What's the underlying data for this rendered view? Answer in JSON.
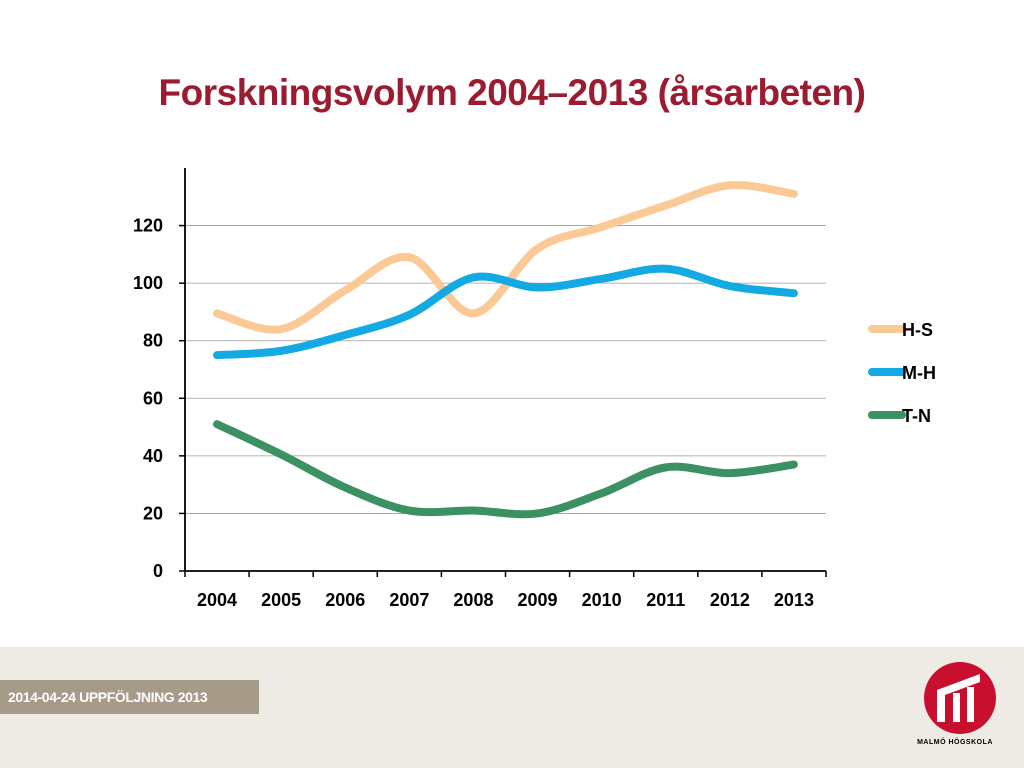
{
  "slide": {
    "title": "Forskningsvolym 2004–2013 (årsarbeten)",
    "footer_tag": "2014-04-24  UPPFÖLJNING 2013",
    "logo_text": "MALMÖ HÖGSKOLA"
  },
  "colors": {
    "title": "#9b1b30",
    "logo": "#c8102e",
    "footer_band": "#eeebe5",
    "footer_tag": "#a69b89",
    "grid": "#9a9a9a"
  },
  "chart_data": {
    "type": "line",
    "title": "",
    "xlabel": "",
    "ylabel": "",
    "ylim": [
      0,
      140
    ],
    "yticks": [
      0,
      20,
      40,
      60,
      80,
      100,
      120
    ],
    "grid": true,
    "legend": "right",
    "smooth": true,
    "categories": [
      "2004",
      "2005",
      "2006",
      "2007",
      "2008",
      "2009",
      "2010",
      "2011",
      "2012",
      "2013"
    ],
    "series": [
      {
        "name": "H-S",
        "color": "#fbc995",
        "values": [
          89.5,
          84,
          97.5,
          109,
          89.5,
          112,
          119.5,
          127,
          134,
          131
        ]
      },
      {
        "name": "M-H",
        "color": "#13aae3",
        "values": [
          75,
          76.5,
          82,
          89,
          102,
          98.5,
          101.5,
          105,
          99,
          96.5
        ]
      },
      {
        "name": "T-N",
        "color": "#3b9162",
        "values": [
          51,
          40.5,
          29,
          21,
          21,
          20,
          27,
          36,
          34,
          37
        ]
      }
    ]
  }
}
